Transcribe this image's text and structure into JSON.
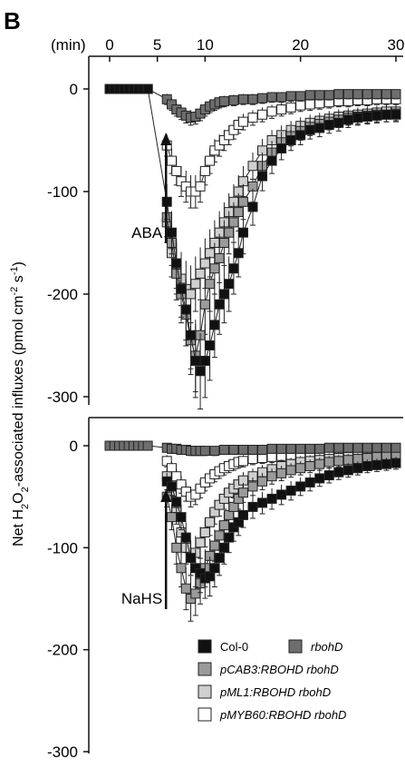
{
  "panel_label": "B",
  "x_unit_label": "(min)",
  "y_label_parts": [
    "Net H",
    "2",
    "O",
    "2",
    "-associated influxes (pmol cm",
    "-2",
    " s",
    "-1",
    ")"
  ],
  "colors": {
    "col0": "#111111",
    "rbohD": "#6e6e6e",
    "pCAB3": "#9a9a9a",
    "pML1": "#cfcfcf",
    "pMYB60": "#ffffff",
    "axis": "#111111"
  },
  "legend": [
    {
      "key": "col0",
      "label": "Col-0",
      "italic": false
    },
    {
      "key": "rbohD",
      "label": "rbohD",
      "italic": true
    },
    {
      "key": "pCAB3",
      "label": "pCAB3:RBOHD rbohD",
      "italic": true
    },
    {
      "key": "pML1",
      "label": "pML1:RBOHD rbohD",
      "italic": true
    },
    {
      "key": "pMYB60",
      "label": "pMYB60:RBOHD rbohD",
      "italic": true
    }
  ],
  "chart_data": [
    {
      "type": "line",
      "panel": "top",
      "treatment_label": "ABA",
      "treatment_time": 6,
      "xlim": [
        0,
        30
      ],
      "xticks": [
        0,
        5,
        10,
        20,
        30
      ],
      "ylim": [
        -300,
        0
      ],
      "yticks": [
        0,
        -100,
        -200,
        -300
      ],
      "series": [
        {
          "key": "col0",
          "name": "Col-0",
          "color": "#111111",
          "x": [
            0,
            0.5,
            1,
            1.5,
            2,
            2.5,
            3,
            3.5,
            4,
            6,
            6.5,
            7,
            7.5,
            8,
            8.5,
            9,
            9.5,
            10,
            10.5,
            11,
            11.5,
            12,
            12.5,
            13,
            13.5,
            14,
            15,
            16,
            17,
            18,
            19,
            20,
            21,
            22,
            23,
            24,
            25,
            26,
            27,
            28,
            29,
            30
          ],
          "y": [
            0,
            0,
            0,
            0,
            0,
            0,
            0,
            0,
            0,
            -110,
            -140,
            -170,
            -195,
            -215,
            -240,
            -265,
            -275,
            -265,
            -250,
            -230,
            -210,
            -200,
            -190,
            -175,
            -160,
            -140,
            -115,
            -85,
            -70,
            -58,
            -50,
            -45,
            -40,
            -38,
            -35,
            -33,
            -30,
            -28,
            -27,
            -26,
            -25,
            -25
          ]
        },
        {
          "key": "rbohD",
          "name": "rbohD",
          "color": "#6e6e6e",
          "x": [
            0,
            0.5,
            1,
            1.5,
            2,
            2.5,
            3,
            3.5,
            4,
            6,
            6.5,
            7,
            7.5,
            8,
            8.5,
            9,
            9.5,
            10,
            10.5,
            11,
            11.5,
            12,
            13,
            14,
            15,
            16,
            17,
            18,
            19,
            20,
            21,
            22,
            23,
            24,
            25,
            26,
            27,
            28,
            29,
            30
          ],
          "y": [
            0,
            0,
            0,
            0,
            0,
            0,
            0,
            0,
            0,
            -10,
            -15,
            -20,
            -23,
            -26,
            -28,
            -27,
            -24,
            -20,
            -17,
            -15,
            -13,
            -12,
            -11,
            -10,
            -10,
            -9,
            -8,
            -8,
            -7,
            -7,
            -6,
            -6,
            -6,
            -5,
            -5,
            -5,
            -5,
            -5,
            -5,
            -5
          ]
        },
        {
          "key": "pCAB3",
          "name": "pCAB3:RBOHD rbohD",
          "color": "#9a9a9a",
          "x": [
            6,
            6.5,
            7,
            7.5,
            8,
            8.5,
            9,
            9.5,
            10,
            10.5,
            11,
            11.5,
            12,
            12.5,
            13,
            13.5,
            14,
            15,
            16,
            17,
            18,
            19,
            20,
            21,
            22,
            23,
            24,
            25,
            26,
            27,
            28,
            29,
            30
          ],
          "y": [
            -125,
            -150,
            -180,
            -200,
            -220,
            -245,
            -260,
            -240,
            -210,
            -190,
            -175,
            -165,
            -150,
            -140,
            -130,
            -120,
            -110,
            -95,
            -75,
            -62,
            -52,
            -46,
            -41,
            -37,
            -34,
            -32,
            -30,
            -28,
            -27,
            -26,
            -25,
            -25,
            -24
          ]
        },
        {
          "key": "pML1",
          "name": "pML1:RBOHD rbohD",
          "color": "#cfcfcf",
          "x": [
            6,
            6.5,
            7,
            7.5,
            8,
            8.5,
            9,
            9.5,
            10,
            10.5,
            11,
            11.5,
            12,
            12.5,
            13,
            13.5,
            14,
            15,
            16,
            17,
            18,
            19,
            20,
            21,
            22,
            23,
            24,
            25,
            26,
            27,
            28,
            29,
            30
          ],
          "y": [
            -130,
            -160,
            -175,
            -185,
            -195,
            -200,
            -190,
            -180,
            -170,
            -160,
            -150,
            -140,
            -130,
            -120,
            -110,
            -100,
            -90,
            -75,
            -60,
            -50,
            -45,
            -40,
            -36,
            -33,
            -31,
            -29,
            -27,
            -26,
            -25,
            -24,
            -23,
            -22,
            -22
          ]
        },
        {
          "key": "pMYB60",
          "name": "pMYB60:RBOHD rbohD",
          "color": "#ffffff",
          "x": [
            6,
            6.5,
            7,
            7.5,
            8,
            8.5,
            9,
            9.5,
            10,
            10.5,
            11,
            11.5,
            12,
            12.5,
            13,
            13.5,
            14,
            15,
            16,
            17,
            18,
            19,
            20,
            21,
            22,
            23,
            24,
            25,
            26,
            27,
            28,
            29,
            30
          ],
          "y": [
            -55,
            -70,
            -80,
            -90,
            -95,
            -100,
            -100,
            -95,
            -80,
            -70,
            -60,
            -55,
            -50,
            -45,
            -40,
            -35,
            -32,
            -28,
            -25,
            -22,
            -20,
            -18,
            -16,
            -15,
            -14,
            -13,
            -12,
            -12,
            -11,
            -11,
            -10,
            -10,
            -10
          ]
        }
      ]
    },
    {
      "type": "line",
      "panel": "bottom",
      "treatment_label": "NaHS",
      "treatment_time": 6,
      "xlim": [
        0,
        30
      ],
      "xticks": [
        0,
        5,
        10,
        20,
        30
      ],
      "ylim": [
        -300,
        0
      ],
      "yticks": [
        0,
        -100,
        -200,
        -300
      ],
      "series": [
        {
          "key": "col0",
          "name": "Col-0",
          "color": "#111111",
          "x": [
            6,
            6.5,
            7,
            7.5,
            8,
            8.5,
            9,
            9.5,
            10,
            10.5,
            11,
            11.5,
            12,
            12.5,
            13,
            13.5,
            14,
            15,
            16,
            17,
            18,
            19,
            20,
            21,
            22,
            23,
            24,
            25,
            26,
            27,
            28,
            29,
            30
          ],
          "y": [
            -35,
            -40,
            -55,
            -70,
            -90,
            -110,
            -120,
            -125,
            -130,
            -128,
            -120,
            -110,
            -100,
            -90,
            -80,
            -75,
            -68,
            -60,
            -56,
            -52,
            -48,
            -44,
            -40,
            -36,
            -32,
            -29,
            -26,
            -24,
            -22,
            -20,
            -19,
            -18,
            -17
          ]
        },
        {
          "key": "rbohD",
          "name": "rbohD",
          "color": "#6e6e6e",
          "x": [
            0,
            0.5,
            1,
            1.5,
            2,
            2.5,
            3,
            3.5,
            4,
            6,
            6.5,
            7,
            7.5,
            8,
            8.5,
            9,
            9.5,
            10,
            11,
            12,
            13,
            14,
            15,
            16,
            17,
            18,
            19,
            20,
            21,
            22,
            23,
            24,
            25,
            26,
            27,
            28,
            29,
            30
          ],
          "y": [
            0,
            0,
            0,
            0,
            0,
            0,
            0,
            0,
            0,
            -2,
            -3,
            -3,
            -4,
            -4,
            -5,
            -5,
            -5,
            -5,
            -5,
            -4,
            -4,
            -4,
            -4,
            -4,
            -3,
            -3,
            -3,
            -3,
            -3,
            -3,
            -2,
            -2,
            -2,
            -2,
            -2,
            -2,
            -2,
            -2
          ]
        },
        {
          "key": "pCAB3",
          "name": "pCAB3:RBOHD rbohD",
          "color": "#9a9a9a",
          "x": [
            6,
            6.5,
            7,
            7.5,
            8,
            8.5,
            9,
            9.5,
            10,
            10.5,
            11,
            11.5,
            12,
            12.5,
            13,
            13.5,
            14,
            15,
            16,
            17,
            18,
            19,
            20,
            21,
            22,
            23,
            24,
            25,
            26,
            27,
            28,
            29,
            30
          ],
          "y": [
            -50,
            -70,
            -100,
            -120,
            -140,
            -150,
            -145,
            -135,
            -120,
            -108,
            -98,
            -88,
            -78,
            -68,
            -60,
            -52,
            -46,
            -40,
            -35,
            -30,
            -27,
            -24,
            -22,
            -20,
            -18,
            -16,
            -15,
            -14,
            -13,
            -12,
            -11,
            -10,
            -10
          ]
        },
        {
          "key": "pML1",
          "name": "pML1:RBOHD rbohD",
          "color": "#cfcfcf",
          "x": [
            6,
            6.5,
            7,
            7.5,
            8,
            8.5,
            9,
            9.5,
            10,
            10.5,
            11,
            11.5,
            12,
            12.5,
            13,
            13.5,
            14,
            15,
            16,
            17,
            18,
            19,
            20,
            21,
            22,
            23,
            24,
            25,
            26,
            27,
            28,
            29,
            30
          ],
          "y": [
            -30,
            -45,
            -65,
            -85,
            -100,
            -110,
            -105,
            -95,
            -85,
            -75,
            -65,
            -58,
            -52,
            -46,
            -42,
            -38,
            -34,
            -30,
            -26,
            -23,
            -20,
            -18,
            -16,
            -15,
            -14,
            -13,
            -12,
            -11,
            -10,
            -10,
            -9,
            -9,
            -9
          ]
        },
        {
          "key": "pMYB60",
          "name": "pMYB60:RBOHD rbohD",
          "color": "#ffffff",
          "x": [
            6,
            6.5,
            7,
            7.5,
            8,
            8.5,
            9,
            9.5,
            10,
            10.5,
            11,
            11.5,
            12,
            12.5,
            13,
            13.5,
            14,
            15,
            16,
            17,
            18,
            19,
            20,
            21,
            22,
            23,
            24,
            25,
            26,
            27,
            28,
            29,
            30
          ],
          "y": [
            -15,
            -22,
            -30,
            -38,
            -45,
            -50,
            -48,
            -42,
            -36,
            -32,
            -28,
            -25,
            -22,
            -20,
            -18,
            -16,
            -15,
            -13,
            -12,
            -11,
            -10,
            -9,
            -8,
            -8,
            -7,
            -7,
            -6,
            -6,
            -6,
            -5,
            -5,
            -5,
            -5
          ]
        }
      ]
    }
  ]
}
